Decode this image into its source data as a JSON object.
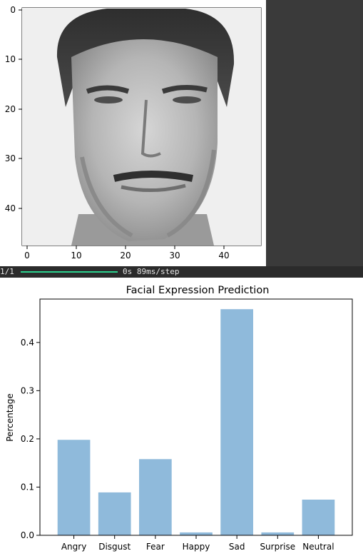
{
  "image_panel": {
    "x_ticks": [
      "0",
      "10",
      "20",
      "30",
      "40"
    ],
    "y_ticks": [
      "0",
      "10",
      "20",
      "30",
      "40"
    ],
    "description_icon": "grayscale-face-image"
  },
  "console": {
    "step": "1/1",
    "progress": 1.0,
    "timing": "0s 89ms/step"
  },
  "chart_data": {
    "type": "bar",
    "title": "Facial Expression Prediction",
    "xlabel": "",
    "ylabel": "Percentage",
    "categories": [
      "Angry",
      "Disgust",
      "Fear",
      "Happy",
      "Sad",
      "Surprise",
      "Neutral"
    ],
    "values": [
      0.198,
      0.089,
      0.158,
      0.006,
      0.469,
      0.006,
      0.074
    ],
    "y_ticks": [
      "0.0",
      "0.1",
      "0.2",
      "0.3",
      "0.4"
    ],
    "ylim": [
      0,
      0.49
    ],
    "bar_color": "#8fbadb",
    "grid": false
  }
}
